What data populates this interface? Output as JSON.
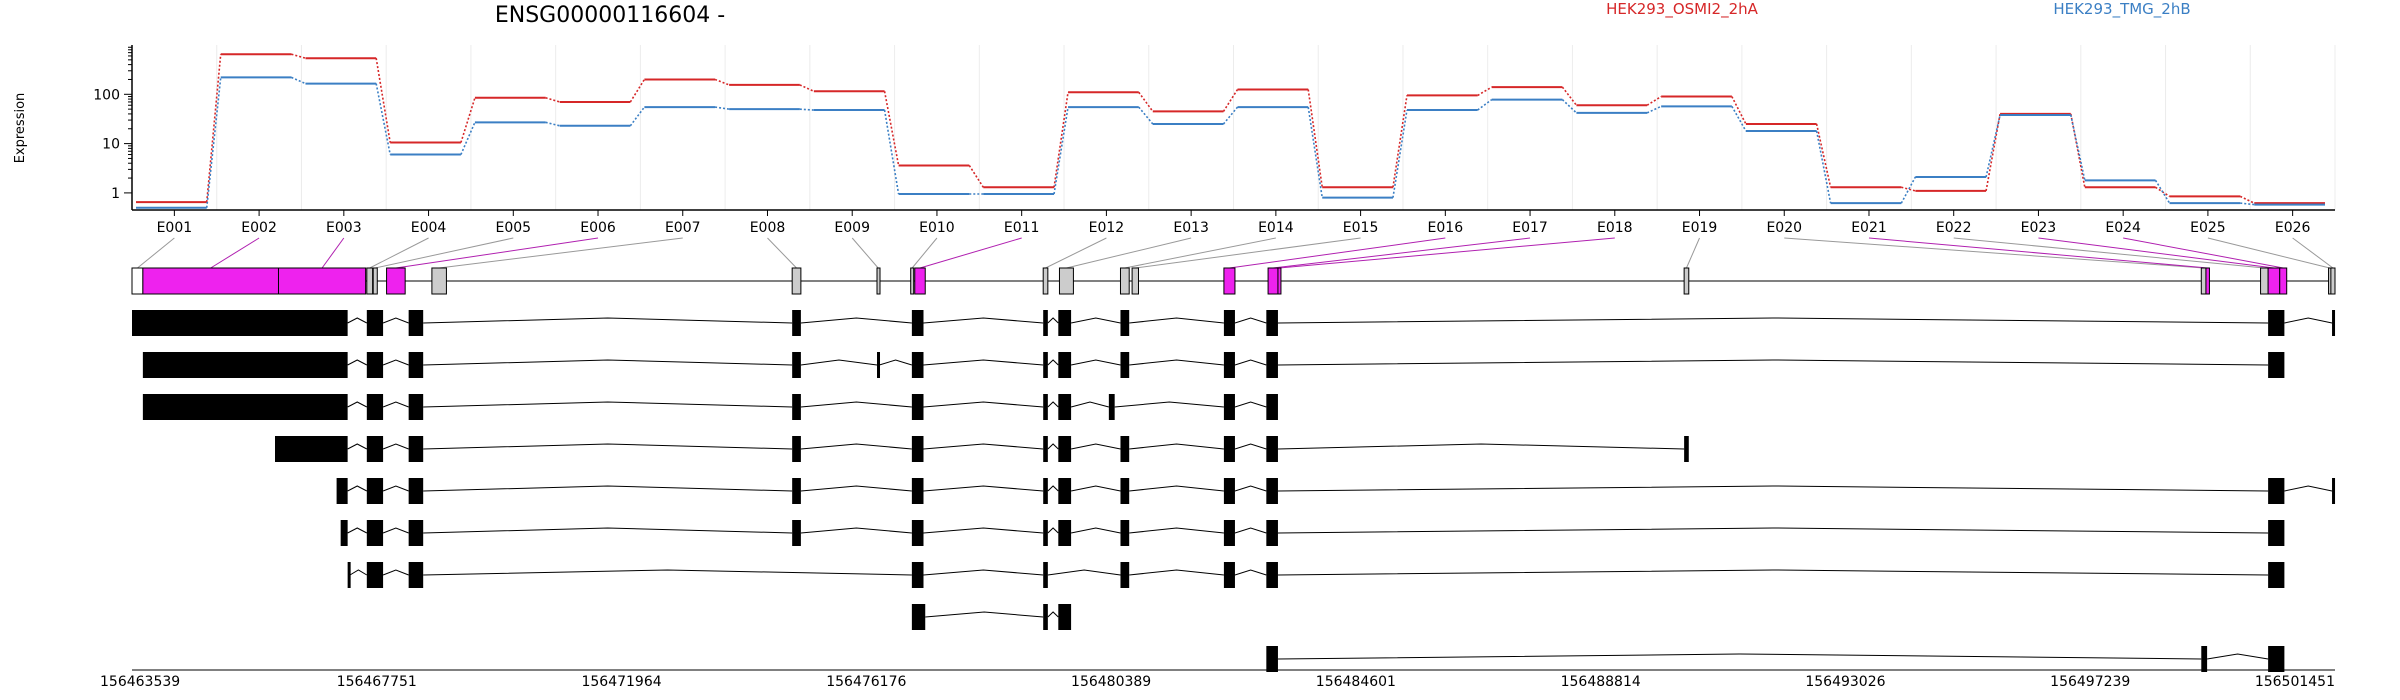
{
  "chart_data": {
    "type": "line",
    "title": "ENSG00000116604 -",
    "ylabel": "Expression",
    "yscale": "log",
    "yticks": [
      "1",
      "10",
      "100"
    ],
    "grid": true,
    "legend_position": "top-right",
    "colors": {
      "red": "#d62728",
      "blue": "#3b7fc4",
      "magenta": "#ee22ee",
      "grey": "#cccccc",
      "black": "#000000"
    },
    "categories": [
      "E001",
      "E002",
      "E003",
      "E004",
      "E005",
      "E006",
      "E007",
      "E008",
      "E009",
      "E010",
      "E011",
      "E012",
      "E013",
      "E014",
      "E015",
      "E016",
      "E017",
      "E018",
      "E019",
      "E020",
      "E021",
      "E022",
      "E023",
      "E024",
      "E025",
      "E026"
    ],
    "series": [
      {
        "name": "HEK293_OSMI2_2hA",
        "color": "#d62728",
        "values": [
          0.65,
          650,
          540,
          10.5,
          85,
          70,
          200,
          155,
          115,
          3.6,
          1.3,
          110,
          45,
          125,
          1.3,
          95,
          140,
          60,
          90,
          25,
          1.3,
          1.1,
          40,
          1.3,
          0.85,
          0.62
        ]
      },
      {
        "name": "HEK293_TMG_2hB",
        "color": "#3b7fc4",
        "values": [
          0.5,
          220,
          165,
          6,
          27,
          23,
          55,
          50,
          48,
          0.95,
          0.95,
          55,
          25,
          55,
          0.8,
          48,
          78,
          42,
          57,
          18,
          0.62,
          2.1,
          38,
          1.8,
          0.62,
          0.58
        ]
      }
    ],
    "coordinate_ticks": [
      "156463539",
      "156467751",
      "156471964",
      "156476176",
      "156480389",
      "156484601",
      "156488814",
      "156493026",
      "156497239",
      "156501451"
    ],
    "gene_model": {
      "coord_start": 156463539,
      "coord_end": 156501451,
      "exons": [
        {
          "id": "E001",
          "start": 156463539,
          "end": 156463726,
          "color": "white"
        },
        {
          "id": "E002",
          "start": 156463726,
          "end": 156466060,
          "color": "magenta"
        },
        {
          "id": "E003",
          "start": 156466060,
          "end": 156467560,
          "color": "magenta"
        },
        {
          "id": "E004",
          "start": 156467580,
          "end": 156467680,
          "color": "grey"
        },
        {
          "id": "E005",
          "start": 156467690,
          "end": 156467760,
          "color": "grey"
        },
        {
          "id": "E006",
          "start": 156467920,
          "end": 156468240,
          "color": "magenta"
        },
        {
          "id": "E007",
          "start": 156468700,
          "end": 156468950,
          "color": "grey"
        },
        {
          "id": "E008",
          "start": 156474900,
          "end": 156475050,
          "color": "grey"
        },
        {
          "id": "E009",
          "start": 156476360,
          "end": 156476400,
          "color": "grey"
        },
        {
          "id": "E010",
          "start": 156476940,
          "end": 156476990,
          "color": "grey"
        },
        {
          "id": "E011",
          "start": 156477010,
          "end": 156477190,
          "color": "magenta"
        },
        {
          "id": "E012",
          "start": 156479220,
          "end": 156479300,
          "color": "grey"
        },
        {
          "id": "E013",
          "start": 156479500,
          "end": 156479740,
          "color": "grey"
        },
        {
          "id": "E014",
          "start": 156480550,
          "end": 156480700,
          "color": "grey"
        },
        {
          "id": "E015",
          "start": 156480750,
          "end": 156480860,
          "color": "grey"
        },
        {
          "id": "E016",
          "start": 156482330,
          "end": 156482520,
          "color": "magenta"
        },
        {
          "id": "E017",
          "start": 156483090,
          "end": 156483260,
          "color": "magenta"
        },
        {
          "id": "E018",
          "start": 156483260,
          "end": 156483300,
          "color": "magenta"
        },
        {
          "id": "E019",
          "start": 156490250,
          "end": 156490330,
          "color": "grey"
        },
        {
          "id": "E020",
          "start": 156499150,
          "end": 156499230,
          "color": "grey"
        },
        {
          "id": "E021",
          "start": 156499230,
          "end": 156499290,
          "color": "magenta"
        },
        {
          "id": "E022",
          "start": 156500170,
          "end": 156500300,
          "color": "grey"
        },
        {
          "id": "E023",
          "start": 156500300,
          "end": 156500500,
          "color": "magenta"
        },
        {
          "id": "E024",
          "start": 156500500,
          "end": 156500620,
          "color": "magenta"
        },
        {
          "id": "E025",
          "start": 156501340,
          "end": 156501380,
          "color": "grey"
        },
        {
          "id": "E026",
          "start": 156501380,
          "end": 156501451,
          "color": "grey"
        }
      ],
      "transcripts": [
        {
          "exons": [
            [
              156463539,
              156467250
            ],
            [
              156467580,
              156467860
            ],
            [
              156468300,
              156468550
            ],
            [
              156474900,
              156475050
            ],
            [
              156476960,
              156477160
            ],
            [
              156479220,
              156479300
            ],
            [
              156479480,
              156479700
            ],
            [
              156480550,
              156480700
            ],
            [
              156482330,
              156482520
            ],
            [
              156483060,
              156483260
            ],
            [
              156500300,
              156500580
            ],
            [
              156501400,
              156501451
            ]
          ]
        },
        {
          "exons": [
            [
              156463726,
              156467250
            ],
            [
              156467580,
              156467860
            ],
            [
              156468300,
              156468550
            ],
            [
              156474900,
              156475050
            ],
            [
              156476360,
              156476400
            ],
            [
              156476960,
              156477160
            ],
            [
              156479220,
              156479300
            ],
            [
              156479480,
              156479700
            ],
            [
              156480550,
              156480700
            ],
            [
              156482330,
              156482520
            ],
            [
              156483060,
              156483260
            ],
            [
              156500300,
              156500580
            ]
          ]
        },
        {
          "exons": [
            [
              156463726,
              156467250
            ],
            [
              156467580,
              156467860
            ],
            [
              156468300,
              156468550
            ],
            [
              156474900,
              156475050
            ],
            [
              156476960,
              156477160
            ],
            [
              156479220,
              156479300
            ],
            [
              156479480,
              156479700
            ],
            [
              156480350,
              156480450
            ],
            [
              156482330,
              156482520
            ],
            [
              156483060,
              156483260
            ]
          ]
        },
        {
          "exons": [
            [
              156466000,
              156467250
            ],
            [
              156467580,
              156467860
            ],
            [
              156468300,
              156468550
            ],
            [
              156474900,
              156475050
            ],
            [
              156476960,
              156477160
            ],
            [
              156479220,
              156479300
            ],
            [
              156479480,
              156479700
            ],
            [
              156480550,
              156480700
            ],
            [
              156482330,
              156482520
            ],
            [
              156483060,
              156483260
            ],
            [
              156490250,
              156490330
            ]
          ]
        },
        {
          "exons": [
            [
              156467060,
              156467250
            ],
            [
              156467580,
              156467860
            ],
            [
              156468300,
              156468550
            ],
            [
              156474900,
              156475050
            ],
            [
              156476960,
              156477160
            ],
            [
              156479220,
              156479300
            ],
            [
              156479480,
              156479700
            ],
            [
              156480550,
              156480700
            ],
            [
              156482330,
              156482520
            ],
            [
              156483060,
              156483260
            ],
            [
              156500300,
              156500580
            ],
            [
              156501400,
              156501451
            ]
          ]
        },
        {
          "exons": [
            [
              156467130,
              156467250
            ],
            [
              156467580,
              156467860
            ],
            [
              156468300,
              156468550
            ],
            [
              156474900,
              156475050
            ],
            [
              156476960,
              156477160
            ],
            [
              156479220,
              156479300
            ],
            [
              156479480,
              156479700
            ],
            [
              156480550,
              156480700
            ],
            [
              156482330,
              156482520
            ],
            [
              156483060,
              156483260
            ],
            [
              156500300,
              156500580
            ]
          ]
        },
        {
          "exons": [
            [
              156467250,
              156467290
            ],
            [
              156467580,
              156467860
            ],
            [
              156468300,
              156468550
            ],
            [
              156476960,
              156477160
            ],
            [
              156479220,
              156479300
            ],
            [
              156480550,
              156480700
            ],
            [
              156482330,
              156482520
            ],
            [
              156483060,
              156483260
            ],
            [
              156500300,
              156500580
            ]
          ]
        },
        {
          "exons": [
            [
              156476960,
              156477190
            ],
            [
              156479220,
              156479300
            ],
            [
              156479480,
              156479700
            ]
          ]
        },
        {
          "exons": [
            [
              156483060,
              156483260
            ],
            [
              156499150,
              156499250
            ],
            [
              156500300,
              156500580
            ]
          ]
        }
      ]
    }
  }
}
